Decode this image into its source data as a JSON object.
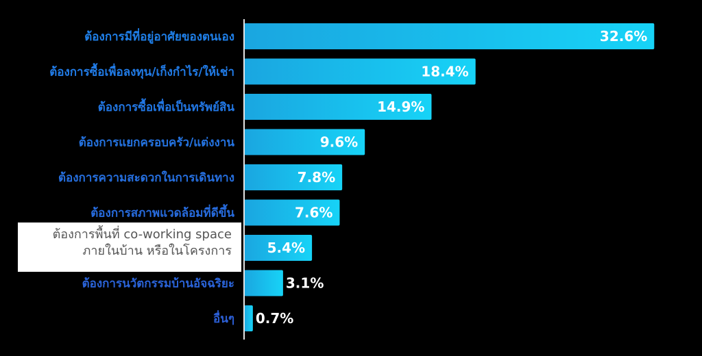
{
  "chart_data": {
    "type": "bar",
    "orientation": "horizontal",
    "categories": [
      "ต้องการมีที่อยู่อาศัยของตนเอง",
      "ต้องการซื้อเพื่อลงทุน/เก็งกำไร/ให้เช่า",
      "ต้องการซื้อเพื่อเป็นทรัพย์สิน",
      "ต้องการแยกครอบครัว/แต่งงาน",
      "ต้องการความสะดวกในการเดินทาง",
      "ต้องการสภาพแวดล้อมที่ดีขึ้น",
      "",
      "ต้องการนวัตกรรมบ้านอัจฉริยะ",
      "อื่นๆ"
    ],
    "values": [
      32.6,
      18.4,
      14.9,
      9.6,
      7.8,
      7.6,
      5.4,
      3.1,
      0.7
    ],
    "value_labels": [
      "32.6%",
      "18.4%",
      "14.9%",
      "9.6%",
      "7.8%",
      "7.6%",
      "5.4%",
      "3.1%",
      "0.7%"
    ],
    "xlim": [
      0,
      34
    ],
    "grid": false,
    "legend": "none",
    "title": "",
    "xlabel": "",
    "ylabel": ""
  },
  "overlay_label": {
    "line1": "ต้องการพื้นที่ co-working space",
    "line2": "ภายในบ้าน หรือในโครงการ"
  },
  "colors": {
    "background": "#000000",
    "bar_left": "#1aa6e0",
    "bar_right": "#17d3f7",
    "label_top": "#1f7fe8",
    "label_bottom": "#2c5fd6",
    "value_text": "#ffffff",
    "axis": "#e6e6e6"
  }
}
